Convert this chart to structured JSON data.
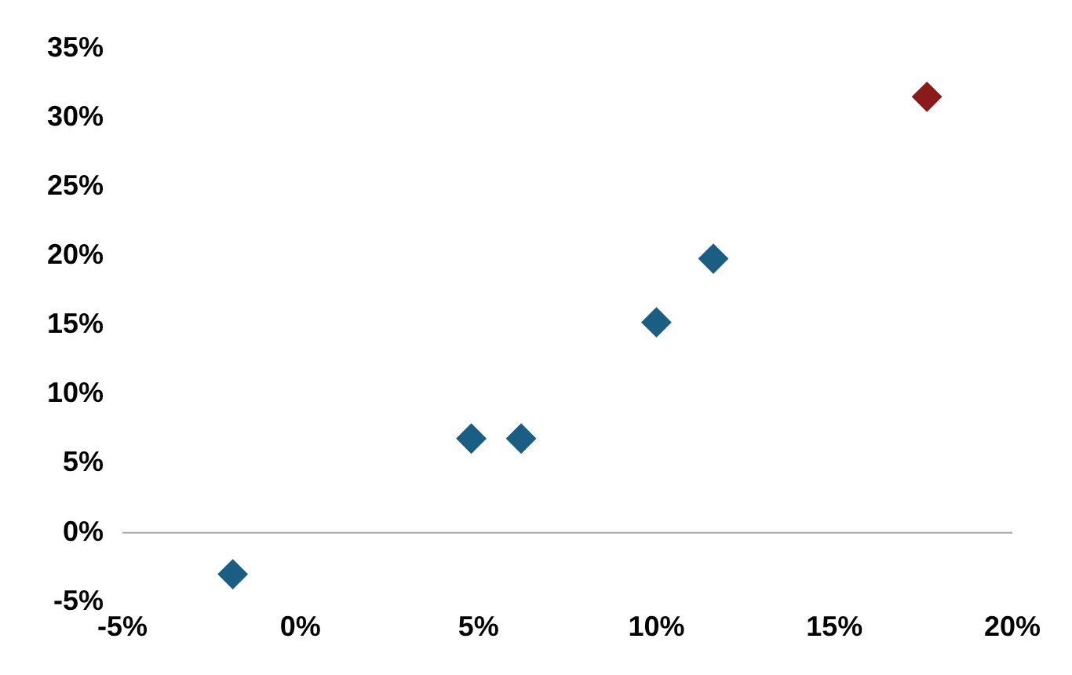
{
  "chart_data": {
    "type": "scatter",
    "marker": "diamond",
    "grid": false,
    "series": [
      {
        "color": "#1b5e84",
        "x": [
          -1.9,
          4.8,
          6.2,
          10.0,
          11.6
        ],
        "values": [
          -3.0,
          6.8,
          6.8,
          15.2,
          19.8
        ]
      },
      {
        "color": "#8b1a1a",
        "x": [
          17.6
        ],
        "values": [
          31.5
        ]
      }
    ],
    "xlim": [
      -5,
      20
    ],
    "xticks": [
      {
        "value": -5,
        "label": "-5%"
      },
      {
        "value": 0,
        "label": "0%"
      },
      {
        "value": 5,
        "label": "5%"
      },
      {
        "value": 10,
        "label": "10%"
      },
      {
        "value": 15,
        "label": "15%"
      },
      {
        "value": 20,
        "label": "20%"
      }
    ],
    "ylim": [
      -5,
      35
    ],
    "yticks": [
      {
        "value": -5,
        "label": "-5%"
      },
      {
        "value": 0,
        "label": "0%"
      },
      {
        "value": 5,
        "label": "5%"
      },
      {
        "value": 10,
        "label": "10%"
      },
      {
        "value": 15,
        "label": "15%"
      },
      {
        "value": 20,
        "label": "20%"
      },
      {
        "value": 25,
        "label": "25%"
      },
      {
        "value": 30,
        "label": "30%"
      },
      {
        "value": 35,
        "label": "35%"
      }
    ],
    "ref_lines": [
      {
        "axis": "y",
        "value": 0,
        "color": "#a6a6a6"
      }
    ]
  }
}
